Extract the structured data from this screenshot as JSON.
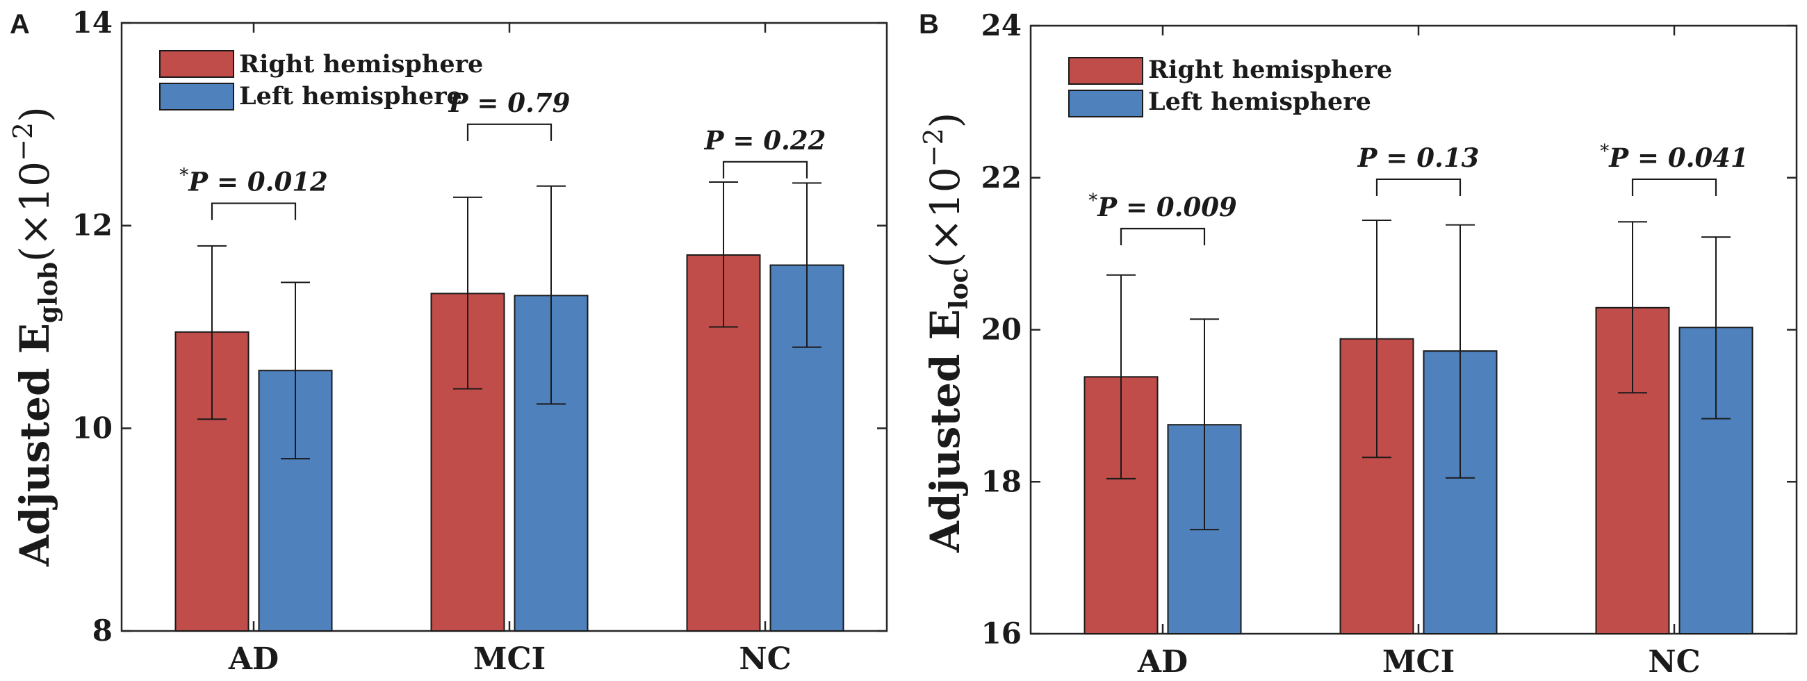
{
  "figure": {
    "colors": {
      "right": "#c04d4a",
      "left": "#4f81bd",
      "edge": "#1a1a1a",
      "axis": "#262626"
    },
    "legend": [
      "Right hemisphere",
      "Left hemisphere"
    ]
  },
  "chart_data": [
    {
      "panel": "A",
      "type": "bar",
      "categories": [
        "AD",
        "MCI",
        "NC"
      ],
      "series": [
        {
          "name": "Right hemisphere",
          "values": [
            10.95,
            11.33,
            11.71
          ],
          "err_low": [
            10.09,
            10.39,
            11.0
          ],
          "err_high": [
            11.8,
            12.28,
            12.43
          ]
        },
        {
          "name": "Left hemisphere",
          "values": [
            10.57,
            11.31,
            11.61
          ],
          "err_low": [
            9.7,
            10.24,
            10.8
          ],
          "err_high": [
            11.44,
            12.39,
            12.42
          ]
        }
      ],
      "ylim": [
        8,
        14
      ],
      "yticks": [
        8,
        10,
        12,
        14
      ],
      "ylabel": {
        "main": "Adjusted E",
        "sub": "glob",
        "mult": "(×10",
        "exp": "−2",
        "close": ")"
      },
      "annotations": [
        {
          "star": "*",
          "text": "P = 0.012",
          "x1": 0,
          "x2": 0,
          "level": 12.22
        },
        {
          "star": "",
          "text": "P = 0.79",
          "x1": 1,
          "x2": 1,
          "level": 13.0
        },
        {
          "star": "",
          "text": "P = 0.22",
          "x1": 2,
          "x2": 2,
          "level": 12.63
        }
      ]
    },
    {
      "panel": "B",
      "type": "bar",
      "categories": [
        "AD",
        "MCI",
        "NC"
      ],
      "series": [
        {
          "name": "Right hemisphere",
          "values": [
            19.38,
            19.88,
            20.29
          ],
          "err_low": [
            18.04,
            18.32,
            19.17
          ],
          "err_high": [
            20.72,
            21.44,
            21.42
          ]
        },
        {
          "name": "Left hemisphere",
          "values": [
            18.75,
            19.72,
            20.03
          ],
          "err_low": [
            17.37,
            18.05,
            18.83
          ],
          "err_high": [
            20.14,
            21.38,
            21.22
          ]
        }
      ],
      "ylim": [
        16,
        24
      ],
      "yticks": [
        16,
        18,
        20,
        22,
        24
      ],
      "ylabel": {
        "main": "Adjusted E",
        "sub": "loc",
        "mult": "(×10",
        "exp": "−2",
        "close": ")"
      },
      "annotations": [
        {
          "star": "*",
          "text": "P = 0.009",
          "x1": 0,
          "x2": 0,
          "level": 21.33
        },
        {
          "star": "",
          "text": "P = 0.13",
          "x1": 1,
          "x2": 1,
          "level": 21.98
        },
        {
          "star": "*",
          "text": "P = 0.041",
          "x1": 2,
          "x2": 2,
          "level": 21.98
        }
      ]
    }
  ]
}
